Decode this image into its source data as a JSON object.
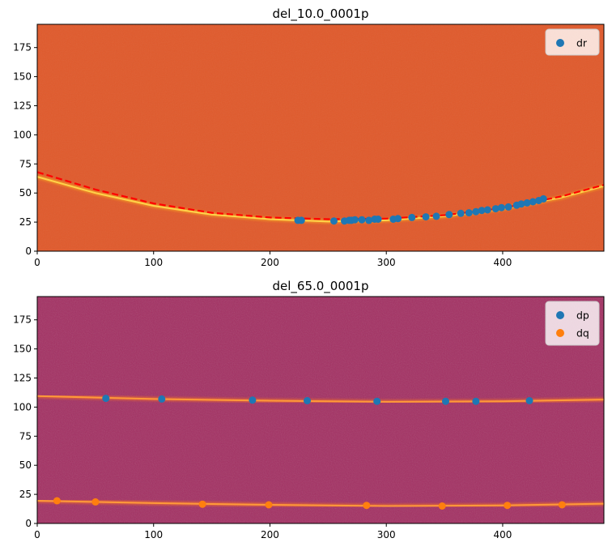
{
  "chart_data": [
    {
      "type": "scatter",
      "title": "del_10.0_0001p",
      "xlim": [
        0,
        487
      ],
      "ylim": [
        0,
        195
      ],
      "xticks": [
        0,
        100,
        200,
        300,
        400
      ],
      "yticks": [
        0,
        25,
        50,
        75,
        100,
        125,
        150,
        175
      ],
      "background": "#e05a2c",
      "grid": false,
      "legend_position": "top-right",
      "curves": [
        {
          "role": "arc",
          "color": "#fbb31d",
          "style": "solid",
          "x": [
            0,
            50,
            100,
            150,
            200,
            250,
            300,
            350,
            400,
            450,
            487
          ],
          "y": [
            64,
            50,
            39,
            31.5,
            27.5,
            25.5,
            26.5,
            30,
            36.5,
            46,
            56
          ]
        },
        {
          "role": "fit",
          "color": "#ff0000",
          "style": "dashed",
          "x": [
            0,
            50,
            100,
            150,
            200,
            250,
            300,
            350,
            400,
            450,
            487
          ],
          "y": [
            68,
            53,
            41,
            33,
            29,
            27.5,
            28,
            31,
            37,
            47,
            57
          ]
        }
      ],
      "series": [
        {
          "name": "dr",
          "color": "#1f77b4",
          "x": [
            224,
            227,
            255,
            264,
            268,
            270,
            273,
            279,
            285,
            290,
            293,
            306,
            310,
            322,
            334,
            343,
            354,
            364,
            371,
            377,
            382,
            387,
            394,
            399,
            405,
            412,
            416,
            421,
            426,
            431,
            435
          ],
          "y": [
            26.5,
            26.5,
            26,
            26,
            26.5,
            26.5,
            27,
            27,
            26.5,
            27.5,
            27.5,
            27.5,
            28,
            29,
            29.5,
            30,
            31.5,
            32.5,
            33,
            34,
            35,
            35.5,
            36.5,
            37.5,
            38,
            39.5,
            40.5,
            41.5,
            42.5,
            43.5,
            45
          ]
        }
      ]
    },
    {
      "type": "scatter",
      "title": "del_65.0_0001p",
      "xlim": [
        0,
        487
      ],
      "ylim": [
        0,
        195
      ],
      "xticks": [
        0,
        100,
        200,
        300,
        400
      ],
      "yticks": [
        0,
        25,
        50,
        75,
        100,
        125,
        150,
        175
      ],
      "background": "#a32f62",
      "grid": false,
      "legend_position": "top-right",
      "curves": [
        {
          "role": "arc",
          "color": "#ff7a1a",
          "style": "solid",
          "x": [
            0,
            100,
            200,
            300,
            400,
            487
          ],
          "y": [
            109.5,
            107,
            105.5,
            104.5,
            105,
            106.5
          ]
        },
        {
          "role": "arc",
          "color": "#ff7a1a",
          "style": "solid",
          "x": [
            0,
            100,
            200,
            300,
            400,
            487
          ],
          "y": [
            19.5,
            17.5,
            16,
            15,
            15.5,
            17
          ]
        }
      ],
      "series": [
        {
          "name": "dp",
          "color": "#1f77b4",
          "x": [
            59,
            107,
            185,
            232,
            292,
            351,
            377,
            423
          ],
          "y": [
            107.5,
            107,
            106,
            105.5,
            105,
            105,
            105,
            105.5
          ]
        },
        {
          "name": "dq",
          "color": "#ff7f0e",
          "x": [
            17,
            50,
            142,
            199,
            283,
            348,
            404,
            451
          ],
          "y": [
            19.5,
            18.5,
            16.5,
            16,
            15.5,
            15,
            15.5,
            16
          ]
        }
      ]
    }
  ]
}
